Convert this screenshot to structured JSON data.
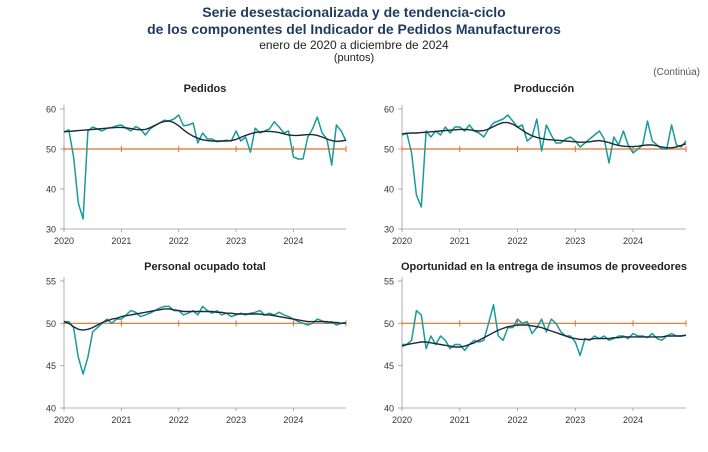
{
  "header": {
    "title_line1": "Serie desestacionalizada y de tendencia-ciclo",
    "title_line2": "de los componentes del Indicador de Pedidos Manufactureros",
    "subtitle": "enero de 2020 a diciembre de 2024",
    "units": "(puntos)",
    "continued": "(Continúa)"
  },
  "colors": {
    "seasonally_adjusted": "#1a9b9b",
    "trend_cycle": "#1b2a3a",
    "threshold": "#e0702a",
    "axis": "#9a9a9a",
    "title_text": "#1f3a5f"
  },
  "chart_data": [
    {
      "type": "line",
      "title": "Pedidos",
      "x": [
        "2020-01",
        "2020-02",
        "2020-03",
        "2020-04",
        "2020-05",
        "2020-06",
        "2020-07",
        "2020-08",
        "2020-09",
        "2020-10",
        "2020-11",
        "2020-12",
        "2021-01",
        "2021-02",
        "2021-03",
        "2021-04",
        "2021-05",
        "2021-06",
        "2021-07",
        "2021-08",
        "2021-09",
        "2021-10",
        "2021-11",
        "2021-12",
        "2022-01",
        "2022-02",
        "2022-03",
        "2022-04",
        "2022-05",
        "2022-06",
        "2022-07",
        "2022-08",
        "2022-09",
        "2022-10",
        "2022-11",
        "2022-12",
        "2023-01",
        "2023-02",
        "2023-03",
        "2023-04",
        "2023-05",
        "2023-06",
        "2023-07",
        "2023-08",
        "2023-09",
        "2023-10",
        "2023-11",
        "2023-12",
        "2024-01",
        "2024-02",
        "2024-03",
        "2024-04",
        "2024-05",
        "2024-06",
        "2024-07",
        "2024-08",
        "2024-09",
        "2024-10",
        "2024-11",
        "2024-12"
      ],
      "xticks": [
        "2020",
        "2021",
        "2022",
        "2023",
        "2024"
      ],
      "ylim": [
        30,
        60
      ],
      "yticks": [
        30,
        40,
        50,
        60
      ],
      "threshold": 50,
      "series": [
        {
          "role": "seasonally_adjusted",
          "values": [
            54.3,
            54.8,
            48.0,
            36.5,
            32.5,
            54.5,
            55.5,
            55.0,
            54.5,
            55.2,
            55.4,
            55.8,
            56.0,
            55.2,
            54.5,
            55.6,
            55.0,
            53.5,
            55.0,
            55.8,
            56.5,
            57.2,
            57.0,
            57.5,
            58.5,
            55.8,
            56.0,
            56.5,
            51.5,
            54.0,
            52.5,
            52.5,
            51.8,
            52.0,
            52.2,
            52.0,
            54.5,
            52.0,
            53.0,
            49.2,
            55.2,
            54.0,
            54.5,
            55.0,
            56.8,
            55.5,
            54.0,
            54.5,
            48.0,
            47.5,
            47.5,
            53.0,
            55.0,
            58.0,
            54.0,
            52.5,
            46.0,
            56.0,
            54.5,
            52.0
          ]
        },
        {
          "role": "trend_cycle",
          "values": [
            54.3,
            54.4,
            54.5,
            54.6,
            54.7,
            54.8,
            54.9,
            55.0,
            55.1,
            55.2,
            55.3,
            55.4,
            55.4,
            55.3,
            55.1,
            54.9,
            54.8,
            54.9,
            55.3,
            55.9,
            56.5,
            56.9,
            57.0,
            56.6,
            55.8,
            54.8,
            53.9,
            53.2,
            52.7,
            52.3,
            52.1,
            52.0,
            52.0,
            52.0,
            52.0,
            52.1,
            52.4,
            52.9,
            53.4,
            53.8,
            54.1,
            54.3,
            54.4,
            54.4,
            54.3,
            54.1,
            53.8,
            53.5,
            53.4,
            53.4,
            53.5,
            53.6,
            53.6,
            53.4,
            53.0,
            52.5,
            52.1,
            51.9,
            52.0,
            52.2
          ]
        }
      ]
    },
    {
      "type": "line",
      "title": "Producción",
      "x": [
        "2020-01",
        "2020-02",
        "2020-03",
        "2020-04",
        "2020-05",
        "2020-06",
        "2020-07",
        "2020-08",
        "2020-09",
        "2020-10",
        "2020-11",
        "2020-12",
        "2021-01",
        "2021-02",
        "2021-03",
        "2021-04",
        "2021-05",
        "2021-06",
        "2021-07",
        "2021-08",
        "2021-09",
        "2021-10",
        "2021-11",
        "2021-12",
        "2022-01",
        "2022-02",
        "2022-03",
        "2022-04",
        "2022-05",
        "2022-06",
        "2022-07",
        "2022-08",
        "2022-09",
        "2022-10",
        "2022-11",
        "2022-12",
        "2023-01",
        "2023-02",
        "2023-03",
        "2023-04",
        "2023-05",
        "2023-06",
        "2023-07",
        "2023-08",
        "2023-09",
        "2023-10",
        "2023-11",
        "2023-12",
        "2024-01",
        "2024-02",
        "2024-03",
        "2024-04",
        "2024-05",
        "2024-06",
        "2024-07",
        "2024-08",
        "2024-09",
        "2024-10",
        "2024-11",
        "2024-12"
      ],
      "xticks": [
        "2020",
        "2021",
        "2022",
        "2023",
        "2024"
      ],
      "ylim": [
        30,
        60
      ],
      "yticks": [
        30,
        40,
        50,
        60
      ],
      "threshold": 50,
      "series": [
        {
          "role": "seasonally_adjusted",
          "values": [
            53.5,
            54.0,
            49.0,
            38.5,
            35.5,
            54.5,
            53.0,
            54.5,
            53.5,
            55.5,
            54.0,
            55.5,
            55.5,
            54.5,
            56.0,
            54.5,
            54.0,
            53.0,
            55.0,
            56.5,
            57.0,
            57.5,
            58.5,
            57.0,
            55.5,
            56.0,
            52.0,
            53.0,
            57.5,
            49.5,
            56.0,
            53.5,
            51.5,
            51.5,
            52.5,
            53.0,
            52.0,
            50.5,
            51.5,
            52.5,
            53.5,
            54.5,
            52.5,
            46.5,
            53.0,
            51.0,
            54.5,
            51.0,
            49.0,
            50.0,
            51.0,
            57.0,
            52.0,
            51.0,
            50.0,
            50.0,
            56.0,
            51.0,
            50.5,
            52.0
          ]
        },
        {
          "role": "trend_cycle",
          "values": [
            53.8,
            53.9,
            54.0,
            54.0,
            54.1,
            54.2,
            54.3,
            54.4,
            54.5,
            54.6,
            54.7,
            54.8,
            54.9,
            54.9,
            54.8,
            54.6,
            54.5,
            54.6,
            55.0,
            55.6,
            56.2,
            56.6,
            56.6,
            56.2,
            55.5,
            54.7,
            53.9,
            53.3,
            52.9,
            52.6,
            52.4,
            52.3,
            52.2,
            52.1,
            52.0,
            51.9,
            51.8,
            51.7,
            51.7,
            51.8,
            52.0,
            52.1,
            51.9,
            51.6,
            51.2,
            50.9,
            50.7,
            50.6,
            50.6,
            50.7,
            50.9,
            51.0,
            51.0,
            50.8,
            50.5,
            50.3,
            50.3,
            50.5,
            50.9,
            51.3
          ]
        }
      ]
    },
    {
      "type": "line",
      "title": "Personal ocupado total",
      "x": [
        "2020-01",
        "2020-02",
        "2020-03",
        "2020-04",
        "2020-05",
        "2020-06",
        "2020-07",
        "2020-08",
        "2020-09",
        "2020-10",
        "2020-11",
        "2020-12",
        "2021-01",
        "2021-02",
        "2021-03",
        "2021-04",
        "2021-05",
        "2021-06",
        "2021-07",
        "2021-08",
        "2021-09",
        "2021-10",
        "2021-11",
        "2021-12",
        "2022-01",
        "2022-02",
        "2022-03",
        "2022-04",
        "2022-05",
        "2022-06",
        "2022-07",
        "2022-08",
        "2022-09",
        "2022-10",
        "2022-11",
        "2022-12",
        "2023-01",
        "2023-02",
        "2023-03",
        "2023-04",
        "2023-05",
        "2023-06",
        "2023-07",
        "2023-08",
        "2023-09",
        "2023-10",
        "2023-11",
        "2023-12",
        "2024-01",
        "2024-02",
        "2024-03",
        "2024-04",
        "2024-05",
        "2024-06",
        "2024-07",
        "2024-08",
        "2024-09",
        "2024-10",
        "2024-11",
        "2024-12"
      ],
      "xticks": [
        "2020",
        "2021",
        "2022",
        "2023",
        "2024"
      ],
      "ylim": [
        40,
        55
      ],
      "yticks": [
        40,
        45,
        50,
        55
      ],
      "threshold": 50,
      "series": [
        {
          "role": "seasonally_adjusted",
          "values": [
            50.2,
            50.2,
            49.5,
            46.0,
            44.0,
            46.0,
            49.0,
            49.5,
            50.0,
            50.5,
            50.0,
            50.5,
            50.5,
            51.0,
            51.5,
            51.3,
            50.8,
            51.0,
            51.2,
            51.5,
            51.8,
            52.0,
            52.0,
            51.5,
            51.5,
            51.0,
            51.2,
            51.5,
            51.0,
            52.0,
            51.5,
            51.2,
            51.5,
            51.0,
            51.2,
            50.8,
            51.0,
            51.2,
            51.0,
            51.2,
            51.3,
            51.5,
            51.0,
            51.2,
            51.0,
            51.3,
            51.0,
            50.8,
            50.5,
            50.2,
            50.0,
            49.8,
            50.0,
            50.5,
            50.3,
            50.0,
            50.2,
            49.8,
            50.0,
            50.1
          ]
        },
        {
          "role": "trend_cycle",
          "values": [
            50.2,
            50.0,
            49.6,
            49.3,
            49.2,
            49.3,
            49.5,
            49.8,
            50.1,
            50.3,
            50.5,
            50.6,
            50.8,
            50.9,
            51.0,
            51.1,
            51.2,
            51.3,
            51.4,
            51.5,
            51.6,
            51.7,
            51.7,
            51.6,
            51.5,
            51.4,
            51.4,
            51.4,
            51.4,
            51.4,
            51.4,
            51.4,
            51.3,
            51.3,
            51.2,
            51.2,
            51.1,
            51.1,
            51.1,
            51.1,
            51.1,
            51.1,
            51.0,
            51.0,
            50.9,
            50.8,
            50.7,
            50.6,
            50.5,
            50.4,
            50.3,
            50.2,
            50.2,
            50.2,
            50.2,
            50.2,
            50.1,
            50.1,
            50.0,
            50.0
          ]
        }
      ]
    },
    {
      "type": "line",
      "title": "Oportunidad en la entrega de insumos de proveedores",
      "x": [
        "2020-01",
        "2020-02",
        "2020-03",
        "2020-04",
        "2020-05",
        "2020-06",
        "2020-07",
        "2020-08",
        "2020-09",
        "2020-10",
        "2020-11",
        "2020-12",
        "2021-01",
        "2021-02",
        "2021-03",
        "2021-04",
        "2021-05",
        "2021-06",
        "2021-07",
        "2021-08",
        "2021-09",
        "2021-10",
        "2021-11",
        "2021-12",
        "2022-01",
        "2022-02",
        "2022-03",
        "2022-04",
        "2022-05",
        "2022-06",
        "2022-07",
        "2022-08",
        "2022-09",
        "2022-10",
        "2022-11",
        "2022-12",
        "2023-01",
        "2023-02",
        "2023-03",
        "2023-04",
        "2023-05",
        "2023-06",
        "2023-07",
        "2023-08",
        "2023-09",
        "2023-10",
        "2023-11",
        "2023-12",
        "2024-01",
        "2024-02",
        "2024-03",
        "2024-04",
        "2024-05",
        "2024-06",
        "2024-07",
        "2024-08",
        "2024-09",
        "2024-10",
        "2024-11",
        "2024-12"
      ],
      "xticks": [
        "2020",
        "2021",
        "2022",
        "2023",
        "2024"
      ],
      "ylim": [
        40,
        55
      ],
      "yticks": [
        40,
        45,
        50,
        55
      ],
      "threshold": 50,
      "series": [
        {
          "role": "seasonally_adjusted",
          "values": [
            47.5,
            47.5,
            48.0,
            51.5,
            51.0,
            47.0,
            48.5,
            47.5,
            48.5,
            48.0,
            47.0,
            47.5,
            47.5,
            46.8,
            47.5,
            48.0,
            47.8,
            48.0,
            50.0,
            52.2,
            48.5,
            48.0,
            49.5,
            49.5,
            50.5,
            50.0,
            50.2,
            48.8,
            49.5,
            50.5,
            49.0,
            50.5,
            50.0,
            49.0,
            48.5,
            48.5,
            47.8,
            46.2,
            48.2,
            48.0,
            48.5,
            48.2,
            48.5,
            48.0,
            48.2,
            48.5,
            48.5,
            48.2,
            48.8,
            48.5,
            48.5,
            48.3,
            48.8,
            48.2,
            48.0,
            48.5,
            48.8,
            48.5,
            48.5,
            48.6
          ]
        },
        {
          "role": "trend_cycle",
          "values": [
            47.3,
            47.5,
            47.6,
            47.7,
            47.8,
            47.8,
            47.7,
            47.6,
            47.5,
            47.4,
            47.3,
            47.2,
            47.2,
            47.3,
            47.5,
            47.7,
            48.0,
            48.3,
            48.6,
            48.9,
            49.2,
            49.4,
            49.6,
            49.7,
            49.8,
            49.8,
            49.8,
            49.7,
            49.6,
            49.5,
            49.3,
            49.1,
            48.9,
            48.7,
            48.5,
            48.3,
            48.2,
            48.1,
            48.1,
            48.1,
            48.2,
            48.2,
            48.2,
            48.2,
            48.3,
            48.3,
            48.4,
            48.4,
            48.4,
            48.4,
            48.4,
            48.4,
            48.4,
            48.4,
            48.4,
            48.5,
            48.5,
            48.5,
            48.5,
            48.6
          ]
        }
      ]
    }
  ]
}
